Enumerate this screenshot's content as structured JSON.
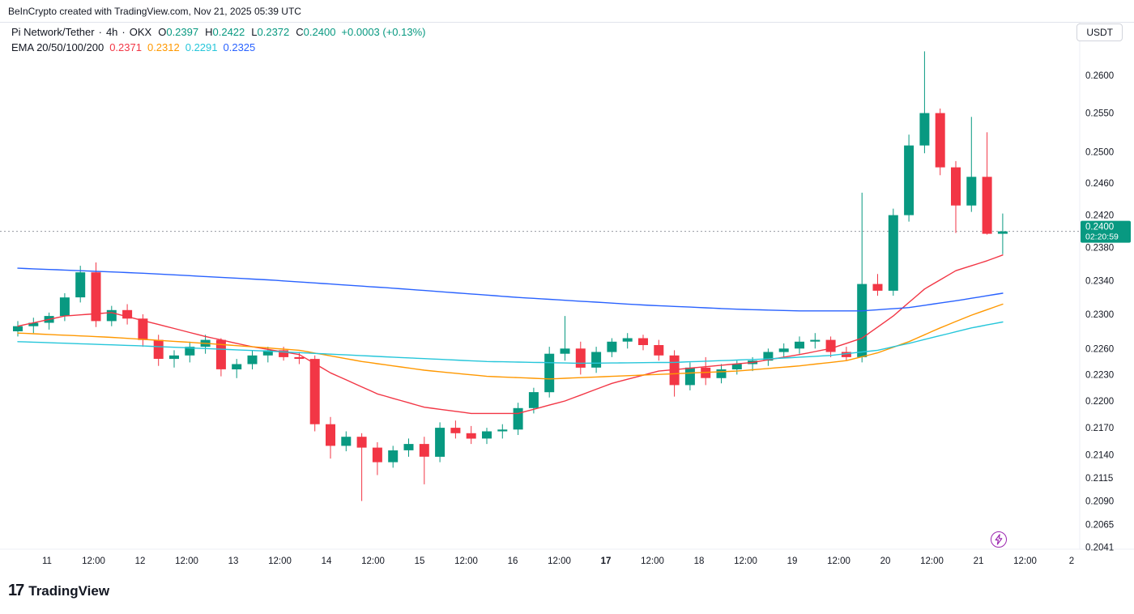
{
  "attribution": "BeInCrypto created with TradingView.com, Nov 21, 2025 05:39 UTC",
  "header": {
    "symbol": "Pi Network/Tether",
    "sep": "·",
    "interval": "4h",
    "exchange": "OKX",
    "ohlc": {
      "o_label": "O",
      "o_value": "0.2397",
      "h_label": "H",
      "h_value": "0.2422",
      "l_label": "L",
      "l_value": "0.2372",
      "c_label": "C",
      "c_value": "0.2400",
      "change": "+0.0003 (+0.13%)"
    },
    "ema_label": "EMA 20/50/100/200",
    "ema_values": [
      "0.2371",
      "0.2312",
      "0.2291",
      "0.2325"
    ]
  },
  "price_axis": {
    "currency_button": "USDT",
    "labels": [
      0.26,
      0.255,
      0.25,
      0.246,
      0.242,
      0.238,
      0.234,
      0.23,
      0.226,
      0.223,
      0.22,
      0.217,
      0.214,
      0.2115,
      0.209,
      0.2065,
      0.2041
    ],
    "last_price": "0.2400",
    "countdown": "02:20:59"
  },
  "time_axis": {
    "ticks": [
      {
        "label": "11",
        "bold": false
      },
      {
        "label": "12:00",
        "bold": false
      },
      {
        "label": "12",
        "bold": false
      },
      {
        "label": "12:00",
        "bold": false
      },
      {
        "label": "13",
        "bold": false
      },
      {
        "label": "12:00",
        "bold": false
      },
      {
        "label": "14",
        "bold": false
      },
      {
        "label": "12:00",
        "bold": false
      },
      {
        "label": "15",
        "bold": false
      },
      {
        "label": "12:00",
        "bold": false
      },
      {
        "label": "16",
        "bold": false
      },
      {
        "label": "12:00",
        "bold": false
      },
      {
        "label": "17",
        "bold": true
      },
      {
        "label": "12:00",
        "bold": false
      },
      {
        "label": "18",
        "bold": false
      },
      {
        "label": "12:00",
        "bold": false
      },
      {
        "label": "19",
        "bold": false
      },
      {
        "label": "12:00",
        "bold": false
      },
      {
        "label": "20",
        "bold": false
      },
      {
        "label": "12:00",
        "bold": false
      },
      {
        "label": "21",
        "bold": false
      },
      {
        "label": "12:00",
        "bold": false
      },
      {
        "label": "2",
        "bold": false
      }
    ]
  },
  "footer": {
    "brand": "TradingView",
    "logo_mark": "17"
  },
  "colors": {
    "up": "#089981",
    "down": "#f23645",
    "ema20": "#f23645",
    "ema50": "#ff9800",
    "ema100": "#26c6da",
    "ema200": "#2962ff",
    "badge_bg": "#089981",
    "axis_text": "#131722",
    "last_price_line": "#9598a1",
    "lightning": "#9c27b0"
  },
  "chart_data": {
    "type": "candlestick",
    "title": "Pi Network/Tether · 4h · OKX",
    "scale": "log",
    "ylim": [
      0.2039,
      0.2671
    ],
    "up_color": "#089981",
    "down_color": "#f23645",
    "last_price": 0.24,
    "candles": [
      [
        0.228,
        0.2292,
        0.2274,
        0.2286
      ],
      [
        0.2286,
        0.2296,
        0.2278,
        0.229
      ],
      [
        0.229,
        0.2302,
        0.2282,
        0.2298
      ],
      [
        0.2298,
        0.2325,
        0.2292,
        0.232
      ],
      [
        0.232,
        0.2358,
        0.2314,
        0.235
      ],
      [
        0.235,
        0.2362,
        0.2285,
        0.2292
      ],
      [
        0.2292,
        0.231,
        0.2286,
        0.2305
      ],
      [
        0.2305,
        0.2312,
        0.2288,
        0.2295
      ],
      [
        0.2295,
        0.23,
        0.2262,
        0.227
      ],
      [
        0.227,
        0.2276,
        0.224,
        0.2248
      ],
      [
        0.2248,
        0.2258,
        0.2238,
        0.2252
      ],
      [
        0.2252,
        0.2268,
        0.2244,
        0.2262
      ],
      [
        0.2262,
        0.2276,
        0.2254,
        0.227
      ],
      [
        0.227,
        0.2272,
        0.2228,
        0.2236
      ],
      [
        0.2236,
        0.2248,
        0.2226,
        0.2242
      ],
      [
        0.2242,
        0.2258,
        0.2236,
        0.2252
      ],
      [
        0.2252,
        0.2262,
        0.2244,
        0.2258
      ],
      [
        0.2258,
        0.2262,
        0.2246,
        0.225
      ],
      [
        0.225,
        0.2256,
        0.2242,
        0.2248
      ],
      [
        0.2248,
        0.2252,
        0.2166,
        0.2174
      ],
      [
        0.2174,
        0.2182,
        0.2136,
        0.215
      ],
      [
        0.215,
        0.2166,
        0.2144,
        0.216
      ],
      [
        0.216,
        0.2164,
        0.209,
        0.2148
      ],
      [
        0.2148,
        0.2154,
        0.2118,
        0.2132
      ],
      [
        0.2132,
        0.215,
        0.2126,
        0.2145
      ],
      [
        0.2145,
        0.2158,
        0.2138,
        0.2152
      ],
      [
        0.2152,
        0.216,
        0.2108,
        0.2138
      ],
      [
        0.2138,
        0.2176,
        0.2132,
        0.217
      ],
      [
        0.217,
        0.2178,
        0.2158,
        0.2164
      ],
      [
        0.2164,
        0.2172,
        0.2152,
        0.2158
      ],
      [
        0.2158,
        0.217,
        0.2152,
        0.2166
      ],
      [
        0.2166,
        0.2174,
        0.2158,
        0.2168
      ],
      [
        0.2168,
        0.2198,
        0.2162,
        0.2192
      ],
      [
        0.2192,
        0.2215,
        0.2186,
        0.221
      ],
      [
        0.221,
        0.2262,
        0.2204,
        0.2254
      ],
      [
        0.2254,
        0.2298,
        0.2246,
        0.226
      ],
      [
        0.226,
        0.2268,
        0.223,
        0.2238
      ],
      [
        0.2238,
        0.2262,
        0.2232,
        0.2256
      ],
      [
        0.2256,
        0.2272,
        0.225,
        0.2268
      ],
      [
        0.2268,
        0.2278,
        0.226,
        0.2272
      ],
      [
        0.2272,
        0.2276,
        0.2258,
        0.2264
      ],
      [
        0.2264,
        0.227,
        0.2246,
        0.2252
      ],
      [
        0.2252,
        0.2258,
        0.2205,
        0.2218
      ],
      [
        0.2218,
        0.2244,
        0.2212,
        0.2238
      ],
      [
        0.2238,
        0.225,
        0.2218,
        0.2226
      ],
      [
        0.2226,
        0.2242,
        0.222,
        0.2236
      ],
      [
        0.2236,
        0.2246,
        0.223,
        0.2242
      ],
      [
        0.2242,
        0.225,
        0.2234,
        0.2246
      ],
      [
        0.2246,
        0.226,
        0.224,
        0.2256
      ],
      [
        0.2256,
        0.2266,
        0.225,
        0.226
      ],
      [
        0.226,
        0.2274,
        0.2254,
        0.2268
      ],
      [
        0.2268,
        0.2278,
        0.226,
        0.227
      ],
      [
        0.227,
        0.2274,
        0.225,
        0.2256
      ],
      [
        0.2256,
        0.2262,
        0.2246,
        0.225
      ],
      [
        0.225,
        0.2448,
        0.2244,
        0.2336
      ],
      [
        0.2336,
        0.2348,
        0.2322,
        0.2328
      ],
      [
        0.2328,
        0.2428,
        0.2322,
        0.242
      ],
      [
        0.242,
        0.2522,
        0.2412,
        0.2508
      ],
      [
        0.2508,
        0.2632,
        0.2498,
        0.255
      ],
      [
        0.255,
        0.2556,
        0.247,
        0.248
      ],
      [
        0.248,
        0.2488,
        0.2398,
        0.2432
      ],
      [
        0.2432,
        0.2545,
        0.2424,
        0.2468
      ],
      [
        0.2468,
        0.2525,
        0.2396,
        0.2397
      ],
      [
        0.2397,
        0.2422,
        0.2372,
        0.24
      ]
    ],
    "overlays": [
      {
        "id": "ema-20",
        "name": "EMA 20",
        "color": "#f23645",
        "points": [
          [
            0,
            0.2286
          ],
          [
            3,
            0.2298
          ],
          [
            6,
            0.2302
          ],
          [
            9,
            0.2288
          ],
          [
            12,
            0.2274
          ],
          [
            15,
            0.2262
          ],
          [
            18,
            0.2253
          ],
          [
            20,
            0.2232
          ],
          [
            23,
            0.2208
          ],
          [
            26,
            0.2193
          ],
          [
            29,
            0.2186
          ],
          [
            32,
            0.2186
          ],
          [
            35,
            0.22
          ],
          [
            38,
            0.222
          ],
          [
            41,
            0.2234
          ],
          [
            44,
            0.2239
          ],
          [
            47,
            0.2244
          ],
          [
            50,
            0.2253
          ],
          [
            52,
            0.226
          ],
          [
            54,
            0.2272
          ],
          [
            56,
            0.2298
          ],
          [
            58,
            0.233
          ],
          [
            60,
            0.2352
          ],
          [
            62,
            0.2364
          ],
          [
            63,
            0.2371
          ]
        ]
      },
      {
        "id": "ema-50",
        "name": "EMA 50",
        "color": "#ff9800",
        "points": [
          [
            0,
            0.2278
          ],
          [
            6,
            0.2273
          ],
          [
            12,
            0.2266
          ],
          [
            18,
            0.2258
          ],
          [
            22,
            0.2245
          ],
          [
            26,
            0.2235
          ],
          [
            30,
            0.2228
          ],
          [
            34,
            0.2225
          ],
          [
            38,
            0.2228
          ],
          [
            42,
            0.2231
          ],
          [
            46,
            0.2234
          ],
          [
            50,
            0.224
          ],
          [
            53,
            0.2246
          ],
          [
            55,
            0.2255
          ],
          [
            57,
            0.2268
          ],
          [
            59,
            0.2284
          ],
          [
            61,
            0.2299
          ],
          [
            63,
            0.2312
          ]
        ]
      },
      {
        "id": "ema-100",
        "name": "EMA 100",
        "color": "#26c6da",
        "points": [
          [
            0,
            0.2268
          ],
          [
            8,
            0.2263
          ],
          [
            16,
            0.2257
          ],
          [
            24,
            0.225
          ],
          [
            30,
            0.2245
          ],
          [
            36,
            0.2243
          ],
          [
            42,
            0.2244
          ],
          [
            48,
            0.2248
          ],
          [
            52,
            0.2252
          ],
          [
            55,
            0.2258
          ],
          [
            57,
            0.2266
          ],
          [
            59,
            0.2275
          ],
          [
            61,
            0.2284
          ],
          [
            63,
            0.2291
          ]
        ]
      },
      {
        "id": "ema-200",
        "name": "EMA 200",
        "color": "#2962ff",
        "points": [
          [
            0,
            0.2355
          ],
          [
            8,
            0.2349
          ],
          [
            16,
            0.2341
          ],
          [
            24,
            0.2331
          ],
          [
            32,
            0.232
          ],
          [
            40,
            0.2311
          ],
          [
            46,
            0.2306
          ],
          [
            50,
            0.2304
          ],
          [
            54,
            0.2304
          ],
          [
            57,
            0.2308
          ],
          [
            60,
            0.2316
          ],
          [
            63,
            0.2325
          ]
        ]
      }
    ]
  }
}
